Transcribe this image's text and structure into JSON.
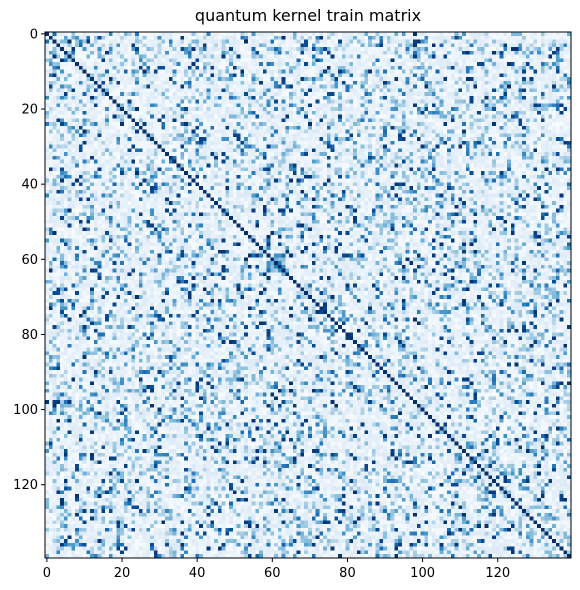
{
  "chart_data": {
    "type": "heatmap",
    "title": "quantum kernel train matrix",
    "colormap": "Blues",
    "size": 140,
    "diagonal_value": 1.0,
    "value_range": [
      0,
      1
    ],
    "x_ticks": [
      0,
      20,
      40,
      60,
      80,
      100,
      120
    ],
    "y_ticks": [
      0,
      20,
      40,
      60,
      80,
      100,
      120
    ],
    "xlabel": "",
    "ylabel": "",
    "grid": false,
    "colors": {
      "low": "#f7fbff",
      "mid": "#6baed6",
      "high": "#08306b"
    }
  }
}
